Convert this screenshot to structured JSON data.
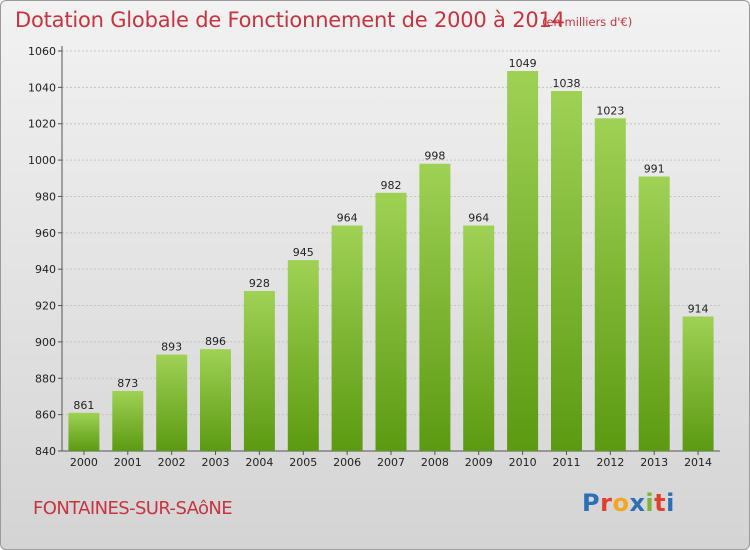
{
  "header": {
    "title": "Dotation Globale de Fonctionnement de 2000 à 2014",
    "unit": "(en milliers d'€)"
  },
  "footer": {
    "commune": "FONTAINES-SUR-SAôNE",
    "brand_letters": [
      "P",
      "r",
      "o",
      "x",
      "i",
      "t",
      "i"
    ],
    "brand_colors": [
      "#2d6fb5",
      "#e0402f",
      "#f4a522",
      "#2d6fb5",
      "#7ab539",
      "#e0402f",
      "#2d6fb5"
    ]
  },
  "colors": {
    "text_red": "#c8333f",
    "bar_light": "#9fd155",
    "bar_dark": "#5c9a12"
  },
  "chart_data": {
    "type": "bar",
    "categories": [
      "2000",
      "2001",
      "2002",
      "2003",
      "2004",
      "2005",
      "2006",
      "2007",
      "2008",
      "2009",
      "2010",
      "2011",
      "2012",
      "2013",
      "2014"
    ],
    "values": [
      861,
      873,
      893,
      896,
      928,
      945,
      964,
      982,
      998,
      964,
      1049,
      1038,
      1023,
      991,
      914
    ],
    "ylim": [
      840,
      1060
    ],
    "yticks": [
      840,
      860,
      880,
      900,
      920,
      940,
      960,
      980,
      1000,
      1020,
      1040,
      1060
    ],
    "grid": true
  }
}
